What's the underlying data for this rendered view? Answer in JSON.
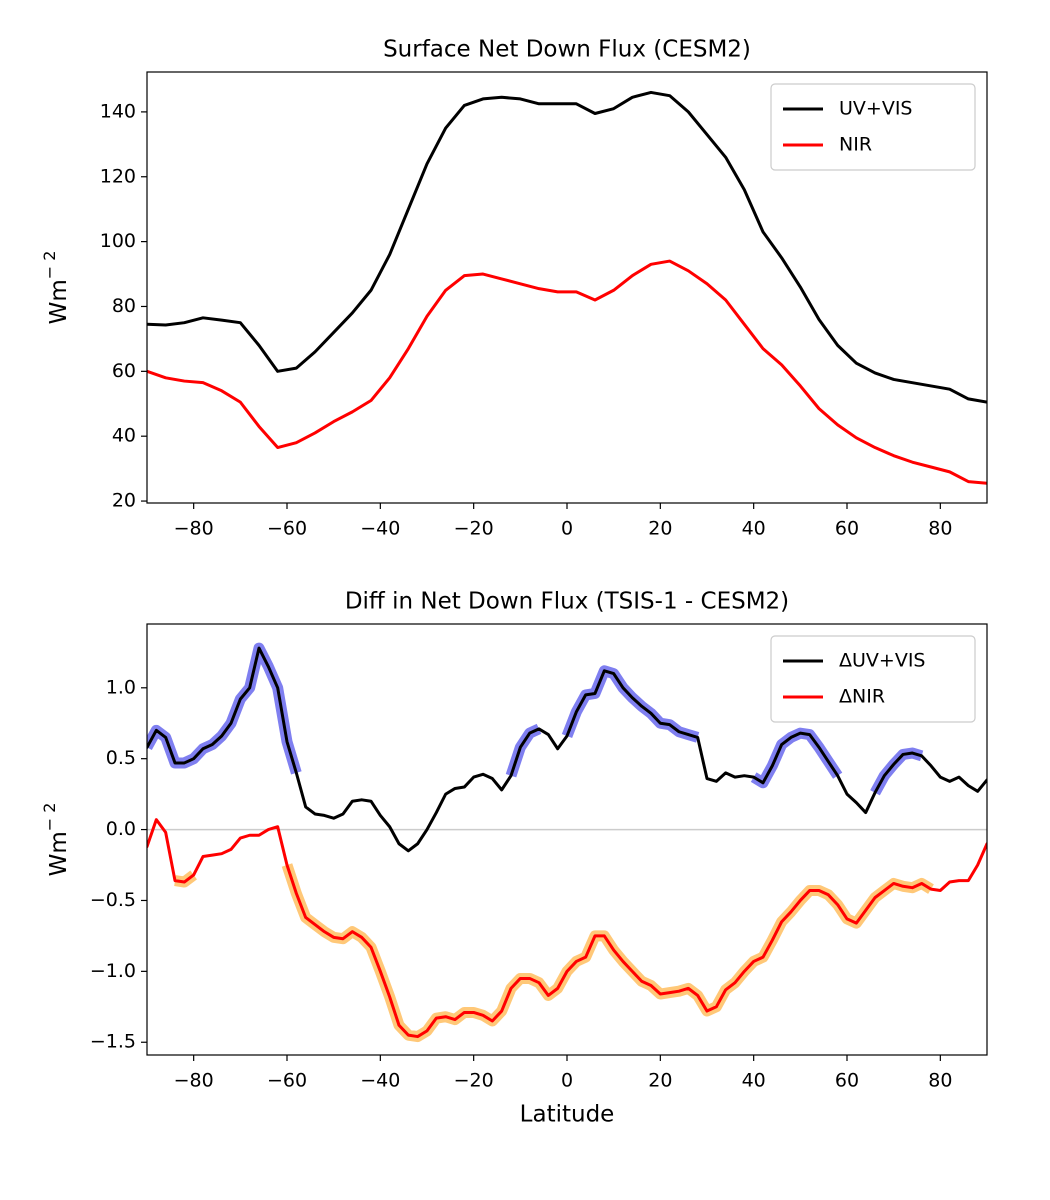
{
  "chart_data": [
    {
      "type": "line",
      "title": "Surface Net Down Flux (CESM2)",
      "ylabel": "Wm",
      "ylabel_superscript": "− 2",
      "xlim": [
        -90,
        90
      ],
      "xticks": [
        {
          "value": -80,
          "label": "−80"
        },
        {
          "value": -60,
          "label": "−60"
        },
        {
          "value": -40,
          "label": "−40"
        },
        {
          "value": -20,
          "label": "−20"
        },
        0,
        20,
        40,
        60,
        80
      ],
      "ylim": [
        19.4,
        152.3
      ],
      "yticks": [
        20,
        40,
        60,
        80,
        100,
        120,
        140
      ],
      "legend": "upper right",
      "x": [
        -90,
        -86,
        -82,
        -78,
        -74,
        -70,
        -66,
        -62,
        -58,
        -54,
        -50,
        -46,
        -42,
        -38,
        -34,
        -30,
        -26,
        -22,
        -18,
        -14,
        -10,
        -6,
        -2,
        2,
        6,
        10,
        14,
        18,
        22,
        26,
        30,
        34,
        38,
        42,
        46,
        50,
        54,
        58,
        62,
        66,
        70,
        74,
        78,
        82,
        86,
        90
      ],
      "series": [
        {
          "name": "UV+VIS",
          "color": "#000000",
          "values": [
            74.5,
            74.3,
            75,
            76.5,
            75.8,
            75,
            68,
            60,
            61,
            66,
            72,
            78,
            85,
            96,
            110,
            124,
            135,
            142,
            144,
            144.5,
            144,
            142.5,
            142.5,
            142.5,
            139.5,
            141,
            144.5,
            146,
            145,
            140,
            133,
            126,
            116,
            103,
            95,
            86,
            76,
            68,
            62.5,
            59.5,
            57.5,
            56.5,
            55.5,
            54.5,
            51.5,
            50.5
          ]
        },
        {
          "name": "NIR",
          "color": "#ff0000",
          "values": [
            60,
            58,
            57,
            56.5,
            54,
            50.5,
            43,
            36.5,
            38,
            41,
            44.5,
            47.5,
            51,
            58,
            67,
            77,
            85,
            89.5,
            90,
            88.5,
            87,
            85.5,
            84.5,
            84.5,
            82,
            85,
            89.5,
            93,
            94,
            91,
            87,
            82,
            74.5,
            67,
            62,
            55.5,
            48.5,
            43.5,
            39.5,
            36.5,
            34,
            32,
            30.5,
            29,
            26,
            25.5
          ]
        }
      ]
    },
    {
      "type": "line",
      "title": "Diff in Net Down Flux (TSIS-1 - CESM2)",
      "ylabel": "Wm",
      "ylabel_superscript": "− 2",
      "xlabel": "Latitude",
      "xlim": [
        -90,
        90
      ],
      "xticks": [
        {
          "value": -80,
          "label": "−80"
        },
        {
          "value": -60,
          "label": "−60"
        },
        {
          "value": -40,
          "label": "−40"
        },
        {
          "value": -20,
          "label": "−20"
        },
        0,
        20,
        40,
        60,
        80
      ],
      "ylim": [
        -1.59,
        1.45
      ],
      "yticks": [
        {
          "value": -1.5,
          "label": "−1.5"
        },
        {
          "value": -1,
          "label": "−1.0"
        },
        {
          "value": -0.5,
          "label": "−0.5"
        },
        {
          "value": 0,
          "label": "0.0"
        },
        0.5,
        {
          "value": 1,
          "label": "1.0"
        }
      ],
      "hline": 0,
      "legend": "upper right",
      "x": [
        -90,
        -88,
        -86,
        -84,
        -82,
        -80,
        -78,
        -76,
        -74,
        -72,
        -70,
        -68,
        -66,
        -64,
        -62,
        -60,
        -58,
        -56,
        -54,
        -52,
        -50,
        -48,
        -46,
        -44,
        -42,
        -40,
        -38,
        -36,
        -34,
        -32,
        -30,
        -28,
        -26,
        -24,
        -22,
        -20,
        -18,
        -16,
        -14,
        -12,
        -10,
        -8,
        -6,
        -4,
        -2,
        0,
        2,
        4,
        6,
        8,
        10,
        12,
        14,
        16,
        18,
        20,
        22,
        24,
        26,
        28,
        30,
        32,
        34,
        36,
        38,
        40,
        42,
        44,
        46,
        48,
        50,
        52,
        54,
        56,
        58,
        60,
        62,
        64,
        66,
        68,
        70,
        72,
        74,
        76,
        78,
        80,
        82,
        84,
        86,
        88,
        90
      ],
      "series": [
        {
          "color": "#7f7ff0",
          "values": [
            0.58,
            0.7,
            0.65,
            0.47,
            0.47,
            0.5,
            0.57,
            0.6,
            0.66,
            0.75,
            0.92,
            1.0,
            1.28,
            1.15,
            1.0,
            0.62,
            0.4,
            null,
            null,
            null,
            null,
            null,
            null,
            null,
            null,
            null,
            null,
            null,
            null,
            null,
            null,
            null,
            null,
            null,
            null,
            null,
            null,
            null,
            null,
            0.38,
            0.58,
            0.68,
            0.71,
            null,
            null,
            0.66,
            0.83,
            0.95,
            0.96,
            1.12,
            1.1,
            1.0,
            0.93,
            0.87,
            0.82,
            0.75,
            0.74,
            0.69,
            0.67,
            0.65,
            null,
            null,
            null,
            null,
            null,
            0.37,
            0.33,
            0.45,
            0.6,
            0.65,
            0.68,
            0.67,
            0.58,
            0.48,
            0.38,
            null,
            null,
            null,
            0.26,
            0.38,
            0.46,
            0.53,
            0.54,
            0.52,
            null,
            null,
            null,
            null,
            null,
            null,
            null
          ]
        },
        {
          "color": "#ffc878",
          "values": [
            null,
            null,
            null,
            -0.36,
            -0.37,
            -0.32,
            null,
            null,
            null,
            null,
            null,
            null,
            null,
            null,
            null,
            -0.25,
            -0.45,
            -0.62,
            -0.67,
            -0.72,
            -0.76,
            -0.77,
            -0.72,
            -0.76,
            -0.83,
            -1.0,
            -1.18,
            -1.38,
            -1.45,
            -1.46,
            -1.42,
            -1.33,
            -1.32,
            -1.34,
            -1.29,
            -1.29,
            -1.31,
            -1.35,
            -1.28,
            -1.12,
            -1.05,
            -1.05,
            -1.08,
            -1.17,
            -1.12,
            -1.0,
            -0.93,
            -0.9,
            -0.75,
            -0.75,
            -0.85,
            -0.93,
            -1.0,
            -1.07,
            -1.1,
            -1.16,
            -1.15,
            -1.14,
            -1.12,
            -1.17,
            -1.28,
            -1.25,
            -1.13,
            -1.08,
            -1.0,
            -0.93,
            -0.9,
            -0.78,
            -0.65,
            -0.58,
            -0.5,
            -0.43,
            -0.43,
            -0.46,
            -0.53,
            -0.63,
            -0.66,
            -0.57,
            -0.48,
            -0.43,
            -0.38,
            -0.4,
            -0.41,
            -0.38,
            -0.42,
            null,
            null,
            null,
            null,
            null,
            null
          ]
        },
        {
          "name": "ΔUV+VIS",
          "color": "#000000",
          "values": [
            0.58,
            0.7,
            0.65,
            0.47,
            0.47,
            0.5,
            0.57,
            0.6,
            0.66,
            0.75,
            0.92,
            1.0,
            1.28,
            1.15,
            1.0,
            0.62,
            0.4,
            0.16,
            0.11,
            0.1,
            0.08,
            0.11,
            0.2,
            0.21,
            0.2,
            0.1,
            0.02,
            -0.1,
            -0.15,
            -0.1,
            0.0,
            0.12,
            0.25,
            0.29,
            0.3,
            0.37,
            0.39,
            0.36,
            0.28,
            0.38,
            0.58,
            0.68,
            0.71,
            0.67,
            0.57,
            0.66,
            0.83,
            0.95,
            0.96,
            1.12,
            1.1,
            1.0,
            0.93,
            0.87,
            0.82,
            0.75,
            0.74,
            0.69,
            0.67,
            0.65,
            0.36,
            0.34,
            0.4,
            0.37,
            0.38,
            0.37,
            0.33,
            0.45,
            0.6,
            0.65,
            0.68,
            0.67,
            0.58,
            0.48,
            0.38,
            0.25,
            0.19,
            0.12,
            0.26,
            0.38,
            0.46,
            0.53,
            0.54,
            0.52,
            0.45,
            0.37,
            0.34,
            0.37,
            0.31,
            0.27,
            0.35
          ]
        },
        {
          "name": "ΔNIR",
          "color": "#ff0000",
          "values": [
            -0.12,
            0.07,
            -0.02,
            -0.36,
            -0.37,
            -0.32,
            -0.19,
            -0.18,
            -0.17,
            -0.14,
            -0.06,
            -0.04,
            -0.04,
            0.0,
            0.02,
            -0.25,
            -0.45,
            -0.62,
            -0.67,
            -0.72,
            -0.76,
            -0.77,
            -0.72,
            -0.76,
            -0.83,
            -1.0,
            -1.18,
            -1.38,
            -1.45,
            -1.46,
            -1.42,
            -1.33,
            -1.32,
            -1.34,
            -1.29,
            -1.29,
            -1.31,
            -1.35,
            -1.28,
            -1.12,
            -1.05,
            -1.05,
            -1.08,
            -1.17,
            -1.12,
            -1.0,
            -0.93,
            -0.9,
            -0.75,
            -0.75,
            -0.85,
            -0.93,
            -1.0,
            -1.07,
            -1.1,
            -1.16,
            -1.15,
            -1.14,
            -1.12,
            -1.17,
            -1.28,
            -1.25,
            -1.13,
            -1.08,
            -1.0,
            -0.93,
            -0.9,
            -0.78,
            -0.65,
            -0.58,
            -0.5,
            -0.43,
            -0.43,
            -0.46,
            -0.53,
            -0.63,
            -0.66,
            -0.57,
            -0.48,
            -0.43,
            -0.38,
            -0.4,
            -0.41,
            -0.38,
            -0.42,
            -0.43,
            -0.37,
            -0.36,
            -0.36,
            -0.25,
            -0.1
          ]
        }
      ]
    }
  ]
}
